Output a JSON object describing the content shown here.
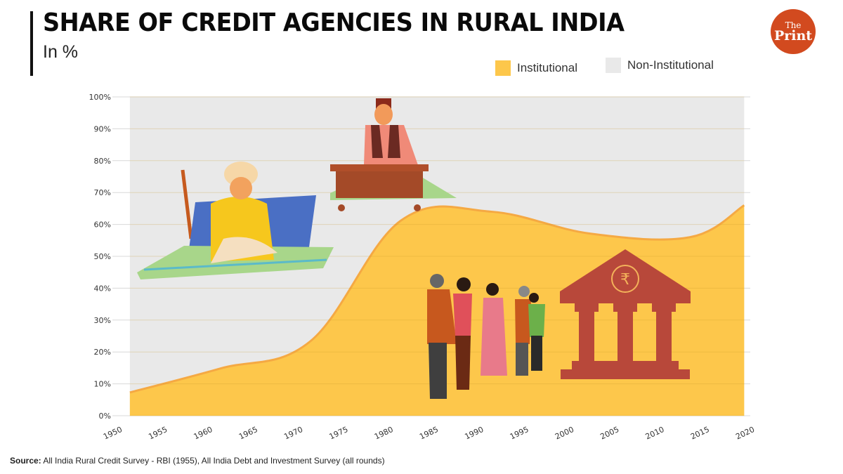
{
  "header": {
    "title": "SHARE OF CREDIT AGENCIES IN RURAL INDIA",
    "subtitle": "In %"
  },
  "logo": {
    "line1": "The",
    "line2": "Print",
    "color": "#d24a1f"
  },
  "legend": [
    {
      "label": "Institutional",
      "color": "#fdc74b"
    },
    {
      "label": "Non-Institutional",
      "color": "#e9e9e9"
    }
  ],
  "source": {
    "label": "Source:",
    "text": "All India Rural Credit Survey - RBI  (1955), All India Debt and Investment Survey (all rounds)"
  },
  "illustrations": [
    {
      "name": "moneylender-seated-on-mat",
      "description": "Moneylender in turban seated on cushion and striped mat"
    },
    {
      "name": "moneylender-at-desk",
      "description": "Moneylender in cap writing at low desk"
    },
    {
      "name": "people-queue",
      "description": "Group of people standing in line"
    },
    {
      "name": "bank-building-rupee",
      "description": "Bank building with rupee symbol"
    }
  ],
  "chart_data": {
    "type": "area",
    "title": "SHARE OF CREDIT AGENCIES IN RURAL INDIA",
    "subtitle": "In %",
    "xlabel": "",
    "ylabel": "",
    "x": [
      1951,
      1961,
      1971,
      1981,
      1991,
      2002,
      2013,
      2019
    ],
    "series": [
      {
        "name": "Institutional",
        "color": "#fdc74b",
        "values": [
          7.3,
          14.8,
          23.4,
          61.2,
          64.0,
          57.1,
          56.0,
          66.0
        ]
      },
      {
        "name": "Non-Institutional",
        "color": "#e9e9e9",
        "values": [
          92.7,
          85.2,
          76.6,
          38.8,
          36.0,
          42.9,
          44.0,
          34.0
        ]
      }
    ],
    "stacked": true,
    "ylim": [
      0,
      100
    ],
    "xlim": [
      1950,
      2020
    ],
    "y_ticks": [
      "0%",
      "10%",
      "20%",
      "30%",
      "40%",
      "50%",
      "60%",
      "70%",
      "80%",
      "90%",
      "100%"
    ],
    "x_ticks": [
      "1950",
      "1955",
      "1960",
      "1965",
      "1970",
      "1975",
      "1980",
      "1985",
      "1990",
      "1995",
      "2000",
      "2005",
      "2010",
      "2015",
      "2020"
    ],
    "grid": true,
    "legend_position": "top-right"
  }
}
